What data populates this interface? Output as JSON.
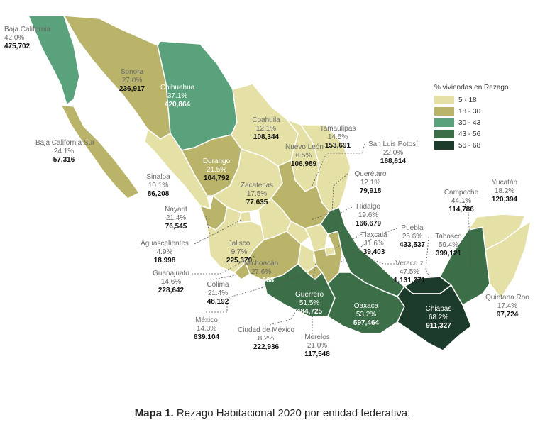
{
  "legend": {
    "title": "% viviendas en Rezago",
    "items": [
      {
        "label": "5 - 18",
        "color": "#e4e0a6"
      },
      {
        "label": "18 - 30",
        "color": "#b9b46a"
      },
      {
        "label": "30 - 43",
        "color": "#5aa27c"
      },
      {
        "label": "43 - 56",
        "color": "#3c6e48"
      },
      {
        "label": "56 - 68",
        "color": "#1d3b2b"
      }
    ]
  },
  "states": [
    {
      "name": "Baja California",
      "pct": "42.0%",
      "val": "475,702"
    },
    {
      "name": "Sonora",
      "pct": "27.0%",
      "val": "236,917"
    },
    {
      "name": "Chihuahua",
      "pct": "37.1%",
      "val": "420,864"
    },
    {
      "name": "Coahuila",
      "pct": "12.1%",
      "val": "108,344"
    },
    {
      "name": "Tamaulipas",
      "pct": "14.5%",
      "val": "153,691"
    },
    {
      "name": "Nuevo León",
      "pct": "6.5%",
      "val": "106,989"
    },
    {
      "name": "San Luis Potosí",
      "pct": "22.0%",
      "val": "168,614"
    },
    {
      "name": "Baja California Sur",
      "pct": "24.1%",
      "val": "57,316"
    },
    {
      "name": "Durango",
      "pct": "21.5%",
      "val": "104,792"
    },
    {
      "name": "Sinaloa",
      "pct": "10.1%",
      "val": "86,208"
    },
    {
      "name": "Zacatecas",
      "pct": "17.5%",
      "val": "77,635"
    },
    {
      "name": "Querétaro",
      "pct": "12.1%",
      "val": "79,918"
    },
    {
      "name": "Nayarit",
      "pct": "21.4%",
      "val": "76,545"
    },
    {
      "name": "Hidalgo",
      "pct": "19.6%",
      "val": "166,679"
    },
    {
      "name": "Campeche",
      "pct": "44.1%",
      "val": "114,786"
    },
    {
      "name": "Yucatán",
      "pct": "18.2%",
      "val": "120,394"
    },
    {
      "name": "Aguascalientes",
      "pct": "4.9%",
      "val": "18,998"
    },
    {
      "name": "Jalisco",
      "pct": "9.7%",
      "val": "225,370"
    },
    {
      "name": "Tlaxcala",
      "pct": "11.6%",
      "val": "39,403"
    },
    {
      "name": "Puebla",
      "pct": "25.6%",
      "val": "433,537"
    },
    {
      "name": "Tabasco",
      "pct": "59.4%",
      "val": "399,121"
    },
    {
      "name": "Michoacán",
      "pct": "27.6%",
      "val": "353,668"
    },
    {
      "name": "Veracruz",
      "pct": "47.5%",
      "val": "1,131,271"
    },
    {
      "name": "Guanajuato",
      "pct": "14.6%",
      "val": "228,642"
    },
    {
      "name": "Colima",
      "pct": "21.4%",
      "val": "48,192"
    },
    {
      "name": "Guerrero",
      "pct": "51.5%",
      "val": "484,725"
    },
    {
      "name": "Oaxaca",
      "pct": "53.2%",
      "val": "597,464"
    },
    {
      "name": "Chiapas",
      "pct": "68.2%",
      "val": "911,327"
    },
    {
      "name": "Quintana Roo",
      "pct": "17.4%",
      "val": "97,724"
    },
    {
      "name": "México",
      "pct": "14.3%",
      "val": "639,104"
    },
    {
      "name": "Ciudad de México",
      "pct": "8.2%",
      "val": "222,936"
    },
    {
      "name": "Morelos",
      "pct": "21.0%",
      "val": "117,548"
    }
  ],
  "caption": {
    "bold": "Mapa 1.",
    "text": "Rezago Habitacional 2020 por entidad federativa."
  }
}
